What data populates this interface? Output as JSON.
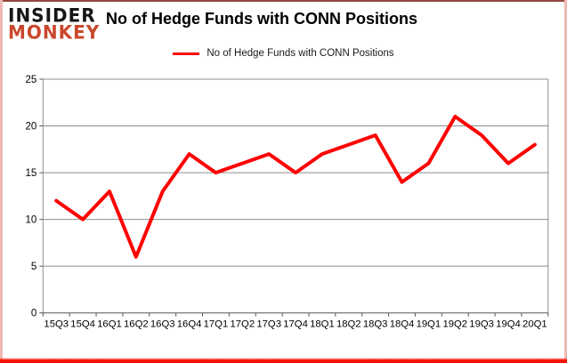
{
  "header": {
    "logo_line1": "INSIDER",
    "logo_line2": "MONKEY",
    "title": "No of Hedge Funds with CONN Positions"
  },
  "legend": {
    "label": "No of Hedge Funds with CONN Positions",
    "color": "#ff0000"
  },
  "chart_data": {
    "type": "line",
    "title": "No of Hedge Funds with CONN Positions",
    "categories": [
      "15Q3",
      "15Q4",
      "16Q1",
      "16Q2",
      "16Q3",
      "16Q4",
      "17Q1",
      "17Q2",
      "17Q3",
      "17Q4",
      "18Q1",
      "18Q2",
      "18Q3",
      "18Q4",
      "19Q1",
      "19Q2",
      "19Q3",
      "19Q4",
      "20Q1"
    ],
    "series": [
      {
        "name": "No of Hedge Funds with CONN Positions",
        "values": [
          12,
          10,
          13,
          6,
          13,
          17,
          15,
          16,
          17,
          15,
          17,
          18,
          19,
          14,
          16,
          21,
          19,
          16,
          18
        ],
        "color": "#ff0000"
      }
    ],
    "xlabel": "",
    "ylabel": "",
    "ylim": [
      0,
      25
    ],
    "yticks": [
      0,
      5,
      10,
      15,
      20,
      25
    ],
    "grid": true,
    "legend_position": "top",
    "grid_color": "#8e8e8e",
    "axis_color": "#555555",
    "text_color": "#000000",
    "line_width": 4
  },
  "colors": {
    "logo_black": "#161616",
    "logo_red": "#c8472b",
    "frame_border_pink": "#eeb9b4",
    "frame_border_top": "#93493d",
    "frame_glow_red": "#fb0f00",
    "plot_background": "#ffffff"
  }
}
